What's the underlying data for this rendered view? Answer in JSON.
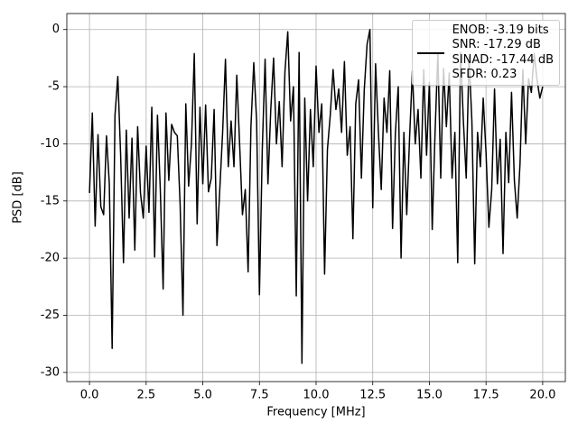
{
  "chart_data": {
    "type": "line",
    "xlabel": "Frequency [MHz]",
    "ylabel": "PSD [dB]",
    "x": [
      0,
      0.125,
      0.25,
      0.375,
      0.5,
      0.625,
      0.75,
      0.875,
      1,
      1.125,
      1.25,
      1.375,
      1.5,
      1.625,
      1.75,
      1.875,
      2,
      2.125,
      2.25,
      2.375,
      2.5,
      2.625,
      2.75,
      2.875,
      3,
      3.125,
      3.25,
      3.375,
      3.5,
      3.625,
      3.75,
      3.875,
      4,
      4.125,
      4.25,
      4.375,
      4.5,
      4.625,
      4.75,
      4.875,
      5,
      5.125,
      5.25,
      5.375,
      5.5,
      5.625,
      5.75,
      5.875,
      6,
      6.125,
      6.25,
      6.375,
      6.5,
      6.625,
      6.75,
      6.875,
      7,
      7.125,
      7.25,
      7.375,
      7.5,
      7.625,
      7.75,
      7.875,
      8,
      8.125,
      8.25,
      8.375,
      8.5,
      8.625,
      8.75,
      8.875,
      9,
      9.125,
      9.25,
      9.375,
      9.5,
      9.625,
      9.75,
      9.875,
      10,
      10.125,
      10.25,
      10.375,
      10.5,
      10.625,
      10.75,
      10.875,
      11,
      11.125,
      11.25,
      11.375,
      11.5,
      11.625,
      11.75,
      11.875,
      12,
      12.125,
      12.25,
      12.375,
      12.5,
      12.625,
      12.75,
      12.875,
      13,
      13.125,
      13.25,
      13.375,
      13.5,
      13.625,
      13.75,
      13.875,
      14,
      14.125,
      14.25,
      14.375,
      14.5,
      14.625,
      14.75,
      14.875,
      15,
      15.125,
      15.25,
      15.375,
      15.5,
      15.625,
      15.75,
      15.875,
      16,
      16.125,
      16.25,
      16.375,
      16.5,
      16.625,
      16.75,
      16.875,
      17,
      17.125,
      17.25,
      17.375,
      17.5,
      17.625,
      17.75,
      17.875,
      18,
      18.125,
      18.25,
      18.375,
      18.5,
      18.625,
      18.75,
      18.875,
      19,
      19.125,
      19.25,
      19.375,
      19.5,
      19.625,
      19.75,
      19.875,
      20
    ],
    "series": [
      {
        "name": "ENOB: -3.19 bits\nSNR: -17.29 dB\nSINAD: -17.44 dB\nSFDR: 0.23",
        "color": "#000000",
        "values": [
          -14.3,
          -7.3,
          -17.2,
          -9.2,
          -15.5,
          -16.2,
          -9.3,
          -13.5,
          -27.9,
          -7.5,
          -4.1,
          -11,
          -20.4,
          -8.8,
          -16.5,
          -9.5,
          -19.3,
          -8.5,
          -14.3,
          -16.5,
          -10.2,
          -16,
          -6.8,
          -19.9,
          -7.5,
          -14,
          -22.7,
          -7.3,
          -13.2,
          -8.3,
          -9,
          -9.3,
          -15.3,
          -25,
          -6.5,
          -13.7,
          -10,
          -2.1,
          -17,
          -6.8,
          -13.5,
          -6.6,
          -14.2,
          -13,
          -7,
          -18.9,
          -14,
          -9,
          -2.6,
          -12,
          -8,
          -12,
          -4,
          -10,
          -16.2,
          -14,
          -21.2,
          -8.5,
          -2.9,
          -8,
          -23.2,
          -10.5,
          -2.6,
          -13.5,
          -7,
          -2.5,
          -10,
          -6.3,
          -12,
          -3.7,
          -0.2,
          -8,
          -5,
          -23.3,
          -2,
          -29.2,
          -6,
          -15,
          -7,
          -12,
          -3.2,
          -9,
          -6.5,
          -21.4,
          -10.5,
          -7.5,
          -3.5,
          -7,
          -5.2,
          -9,
          -2.8,
          -11,
          -8.5,
          -18.3,
          -6.5,
          -4.4,
          -13,
          -5.3,
          -1.3,
          0,
          -15.6,
          -3,
          -9,
          -14,
          -6,
          -9,
          -3.6,
          -17.4,
          -9,
          -5,
          -20,
          -9,
          -16.2,
          -9.5,
          -3.6,
          -10,
          -7,
          -13,
          -3.5,
          -11,
          -4.6,
          -17.5,
          -9,
          -2,
          -13,
          -3.4,
          -8.5,
          -3.8,
          -13,
          -9,
          -20.4,
          -2,
          -8,
          -13,
          -2.4,
          -8,
          -20.5,
          -9,
          -12,
          -6,
          -10.8,
          -17.3,
          -14,
          -5.2,
          -13.5,
          -9.6,
          -19.6,
          -9,
          -13.4,
          -5.5,
          -13.2,
          -16.5,
          -11.7,
          -3.5,
          -10,
          -4.3,
          -5.5,
          -2.1,
          -4.4,
          -6,
          -5
        ]
      }
    ],
    "xlim": [
      -1,
      21
    ],
    "xticks": [
      {
        "value": 0,
        "label": "0.0"
      },
      {
        "value": 2.5,
        "label": "2.5"
      },
      {
        "value": 5,
        "label": "5.0"
      },
      {
        "value": 7.5,
        "label": "7.5"
      },
      {
        "value": 10,
        "label": "10.0"
      },
      {
        "value": 12.5,
        "label": "12.5"
      },
      {
        "value": 15,
        "label": "15.0"
      },
      {
        "value": 17.5,
        "label": "17.5"
      },
      {
        "value": 20,
        "label": "20.0"
      }
    ],
    "ylim": [
      -30.8,
      1.4
    ],
    "yticks": [
      0,
      -5,
      -10,
      -15,
      -20,
      -25,
      -30
    ],
    "grid": true,
    "legend": "upper right"
  }
}
